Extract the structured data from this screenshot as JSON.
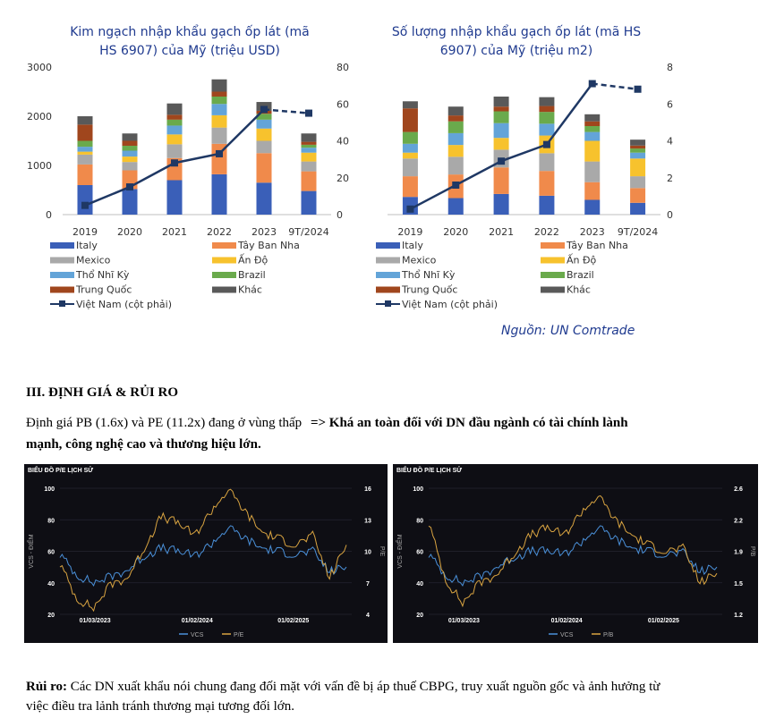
{
  "chart_data": [
    {
      "type": "bar",
      "title": "Kim ngạch nhập khẩu gạch ốp lát (mã HS 6907) của Mỹ (triệu USD)",
      "title_lines": [
        "Kim ngạch nhập khẩu gạch ốp lát (mã",
        "HS 6907) của Mỹ (triệu USD)"
      ],
      "categories": [
        "2019",
        "2020",
        "2021",
        "2022",
        "2023",
        "9T/2024"
      ],
      "ylim": [
        0,
        3000
      ],
      "yticks": [
        "0",
        "1000",
        "2000",
        "3000"
      ],
      "y2lim": [
        0,
        80
      ],
      "y2ticks": [
        "0",
        "20",
        "40",
        "60",
        "80"
      ],
      "stacked": true,
      "series": [
        {
          "name": "Italy",
          "color": "#3a5fb8",
          "values": [
            600,
            520,
            700,
            820,
            650,
            480
          ]
        },
        {
          "name": "Tây Ban Nha",
          "color": "#f08a4b",
          "values": [
            420,
            380,
            450,
            620,
            600,
            400
          ]
        },
        {
          "name": "Mexico",
          "color": "#a9a9a9",
          "values": [
            200,
            170,
            280,
            330,
            250,
            200
          ]
        },
        {
          "name": "Ấn Độ",
          "color": "#f7c22d",
          "values": [
            60,
            110,
            200,
            250,
            250,
            180
          ]
        },
        {
          "name": "Thổ Nhĩ Kỳ",
          "color": "#63a4d8",
          "values": [
            100,
            120,
            180,
            230,
            180,
            100
          ]
        },
        {
          "name": "Brazil",
          "color": "#6aaa4c",
          "values": [
            120,
            100,
            120,
            150,
            120,
            60
          ]
        },
        {
          "name": "Trung Quốc",
          "color": "#a0461d",
          "values": [
            330,
            100,
            100,
            100,
            60,
            60
          ]
        },
        {
          "name": "Khác",
          "color": "#595959",
          "values": [
            170,
            150,
            230,
            250,
            180,
            170
          ]
        }
      ],
      "line": {
        "name": "Việt Nam (cột phải)",
        "color": "#1f3864",
        "values": [
          5,
          15,
          28,
          33,
          57,
          55
        ],
        "dashed_from_index": 4
      }
    },
    {
      "type": "bar",
      "title": "Số lượng nhập khẩu gạch ốp lát (mã HS 6907) của Mỹ (triệu m2)",
      "title_lines": [
        "Số lượng nhập khẩu gạch ốp lát (mã HS",
        "6907) của Mỹ (triệu m2)"
      ],
      "categories": [
        "2019",
        "2020",
        "2021",
        "2022",
        "2023",
        "9T/2024"
      ],
      "ylim": [
        0,
        250
      ],
      "yticks": [
        "0",
        "50",
        "100",
        "150",
        "200",
        "250"
      ],
      "y2lim": [
        0,
        8
      ],
      "y2ticks": [
        "0",
        "2",
        "4",
        "6",
        "8"
      ],
      "stacked": true,
      "series": [
        {
          "name": "Italy",
          "color": "#3a5fb8",
          "values": [
            30,
            28,
            35,
            32,
            25,
            20
          ]
        },
        {
          "name": "Tây Ban Nha",
          "color": "#f08a4b",
          "values": [
            35,
            40,
            45,
            42,
            30,
            25
          ]
        },
        {
          "name": "Mexico",
          "color": "#a9a9a9",
          "values": [
            30,
            30,
            30,
            30,
            35,
            20
          ]
        },
        {
          "name": "Ấn Độ",
          "color": "#f7c22d",
          "values": [
            10,
            20,
            20,
            30,
            35,
            30
          ]
        },
        {
          "name": "Thổ Nhĩ Kỳ",
          "color": "#63a4d8",
          "values": [
            15,
            20,
            25,
            20,
            15,
            10
          ]
        },
        {
          "name": "Brazil",
          "color": "#6aaa4c",
          "values": [
            20,
            20,
            20,
            20,
            10,
            7
          ]
        },
        {
          "name": "Trung Quốc",
          "color": "#a0461d",
          "values": [
            40,
            10,
            8,
            10,
            8,
            5
          ]
        },
        {
          "name": "Khác",
          "color": "#595959",
          "values": [
            12,
            15,
            17,
            15,
            12,
            10
          ]
        }
      ],
      "line": {
        "name": "Việt Nam (cột phải)",
        "color": "#1f3864",
        "values": [
          0.3,
          1.6,
          2.9,
          3.8,
          7.1,
          6.8
        ],
        "dashed_from_index": 4
      }
    },
    {
      "type": "line",
      "title": "BIỂU ĐỒ P/E LỊCH SỬ",
      "ylabel": "VCS - ĐIỂM",
      "y2label": "P/E",
      "ylim": [
        20,
        100
      ],
      "yticks": [
        "100",
        "80",
        "60",
        "40",
        "20"
      ],
      "y2ticks": [
        "16",
        "13",
        "10",
        "7",
        "4"
      ],
      "xticks": [
        "01/03/2023",
        "01/02/2024",
        "01/02/2025"
      ],
      "series": [
        {
          "name": "VCS",
          "color": "#4a90d9",
          "values": [
            58,
            45,
            40,
            44,
            48,
            57,
            62,
            60,
            57,
            65,
            75,
            68,
            62,
            60,
            58,
            60,
            47,
            50
          ]
        },
        {
          "name": "P/E",
          "color": "#d9a441",
          "values": [
            52,
            30,
            24,
            39,
            43,
            62,
            82,
            78,
            70,
            86,
            99,
            85,
            72,
            68,
            64,
            70,
            43,
            64
          ]
        }
      ]
    },
    {
      "type": "line",
      "title": "BIỂU ĐỒ P/E LỊCH SỬ",
      "ylabel": "VCS - ĐIỂM",
      "y2label": "P/B",
      "ylim": [
        20,
        100
      ],
      "yticks": [
        "100",
        "80",
        "60",
        "40",
        "20"
      ],
      "y2ticks": [
        "2.6",
        "2.2",
        "1.9",
        "1.5",
        "1.2"
      ],
      "xticks": [
        "01/03/2023",
        "01/02/2024",
        "01/02/2025"
      ],
      "series": [
        {
          "name": "VCS",
          "color": "#4a90d9",
          "values": [
            58,
            45,
            40,
            44,
            50,
            56,
            60,
            60,
            58,
            66,
            75,
            68,
            62,
            60,
            58,
            59,
            47,
            50
          ]
        },
        {
          "name": "P/B",
          "color": "#d9a441",
          "values": [
            78,
            42,
            27,
            40,
            45,
            58,
            70,
            75,
            70,
            85,
            95,
            80,
            70,
            64,
            60,
            62,
            40,
            46
          ]
        }
      ]
    }
  ],
  "source": "Nguồn: UN Comtrade",
  "section_heading": "III. ĐỊNH GIÁ & RỦI RO",
  "valuation": {
    "normal": "Định giá PB (1.6x) và PE (11.2x) đang ở vùng thấp",
    "bold_line1": "=> Khá an toàn đối với DN đầu ngành có tài chính lành",
    "bold_line2": "mạnh, công nghệ cao và thương hiệu lớn."
  },
  "risk": {
    "label": "Rủi ro:",
    "text_line1": "Các DN xuất khẩu nói chung đang đối mặt với vấn đề bị áp thuế CBPG, truy xuất nguồn gốc và ảnh hưởng từ",
    "text_line2": "việc điều tra lảnh tránh thương mại tương đối lớn."
  }
}
